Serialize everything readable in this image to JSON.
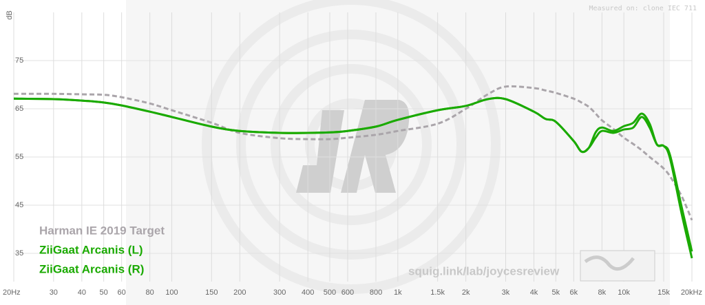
{
  "chart_data": {
    "type": "line",
    "y_axis_label": "dB",
    "measured_note": "Measured on: clone IEC 711",
    "watermark": "squig.link/lab/joycesreview",
    "log_x": true,
    "grid": true,
    "legend_position": "lower left",
    "xlim": [
      20,
      20000
    ],
    "ylim": [
      30,
      85
    ],
    "yticks": [
      35,
      45,
      55,
      65,
      75
    ],
    "xticks": [
      {
        "value": 20,
        "label": "20Hz"
      },
      30,
      40,
      50,
      60,
      80,
      100,
      150,
      200,
      300,
      400,
      500,
      600,
      800,
      {
        "value": 1000,
        "label": "1k"
      },
      {
        "value": 1500,
        "label": "1.5k"
      },
      {
        "value": 2000,
        "label": "2k"
      },
      {
        "value": 3000,
        "label": "3k"
      },
      {
        "value": 4000,
        "label": "4k"
      },
      {
        "value": 5000,
        "label": "5k"
      },
      {
        "value": 6000,
        "label": "6k"
      },
      {
        "value": 8000,
        "label": "8k"
      },
      {
        "value": 10000,
        "label": "10k"
      },
      {
        "value": 15000,
        "label": "15k"
      },
      {
        "value": 20000,
        "label": "20kHz"
      }
    ],
    "x": [
      20,
      30,
      40,
      50,
      60,
      80,
      100,
      150,
      200,
      300,
      400,
      500,
      600,
      800,
      1000,
      1500,
      2000,
      2500,
      3000,
      4000,
      4500,
      5000,
      6000,
      6500,
      7000,
      7500,
      8000,
      9000,
      10000,
      11000,
      12000,
      13000,
      14000,
      15000,
      16000,
      18000,
      20000
    ],
    "series": [
      {
        "name": "Harman IE 2019 Target",
        "color": "#aaa5aa",
        "dashed": true,
        "values": [
          68.1,
          68.1,
          68.0,
          67.9,
          67.4,
          66.1,
          64.7,
          62.1,
          60.0,
          58.9,
          58.7,
          58.7,
          59.0,
          59.6,
          60.4,
          61.9,
          65.0,
          68.0,
          69.6,
          69.3,
          68.8,
          68.3,
          67.1,
          66.3,
          65.4,
          64.0,
          62.6,
          60.8,
          59.0,
          57.7,
          56.4,
          55.0,
          53.8,
          52.6,
          51.0,
          46.9,
          41.9
        ]
      },
      {
        "name": "ZiiGaat Arcanis (L)",
        "color": "#1aaa00",
        "dashed": false,
        "values": [
          67.1,
          67.0,
          66.7,
          66.3,
          65.7,
          64.4,
          63.3,
          61.3,
          60.4,
          60.0,
          60.0,
          60.1,
          60.4,
          61.3,
          62.7,
          64.7,
          65.6,
          67.0,
          67.0,
          64.4,
          62.9,
          62.3,
          58.3,
          56.1,
          56.9,
          59.0,
          60.4,
          60.0,
          60.7,
          61.1,
          63.3,
          61.1,
          57.6,
          57.3,
          54.7,
          43.3,
          34.0
        ]
      },
      {
        "name": "ZiiGaat Arcanis (R)",
        "color": "#1aaa00",
        "dashed": false,
        "values": [
          67.1,
          67.0,
          66.7,
          66.3,
          65.7,
          64.4,
          63.3,
          61.3,
          60.4,
          60.0,
          60.0,
          60.1,
          60.4,
          61.3,
          62.7,
          64.7,
          65.6,
          67.0,
          67.0,
          64.4,
          62.9,
          62.3,
          58.3,
          56.1,
          56.9,
          60.1,
          61.1,
          60.4,
          61.4,
          62.1,
          64.0,
          61.9,
          57.6,
          57.3,
          55.4,
          44.7,
          35.4
        ]
      }
    ]
  }
}
